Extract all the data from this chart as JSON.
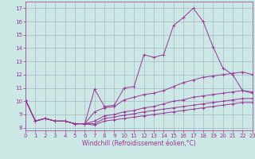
{
  "xlabel": "Windchill (Refroidissement éolien,°C)",
  "background_color": "#cce8e4",
  "grid_color": "#9999bb",
  "line_color": "#993399",
  "xlim": [
    0,
    23
  ],
  "ylim": [
    7.8,
    17.5
  ],
  "yticks": [
    8,
    9,
    10,
    11,
    12,
    13,
    14,
    15,
    16,
    17
  ],
  "xticks": [
    0,
    1,
    2,
    3,
    4,
    5,
    6,
    7,
    8,
    9,
    10,
    11,
    12,
    13,
    14,
    15,
    16,
    17,
    18,
    19,
    20,
    21,
    22,
    23
  ],
  "line1_x": [
    0,
    1,
    2,
    3,
    4,
    5,
    6,
    7,
    8,
    9,
    10,
    11,
    12,
    13,
    14,
    15,
    16,
    17,
    18,
    19,
    20,
    21,
    22,
    23
  ],
  "line1_y": [
    10.1,
    8.5,
    8.7,
    8.5,
    8.5,
    8.3,
    8.3,
    10.9,
    9.6,
    9.7,
    11.0,
    11.1,
    13.5,
    13.3,
    13.5,
    15.7,
    16.3,
    17.0,
    16.0,
    14.1,
    12.5,
    12.0,
    10.8,
    10.6
  ],
  "line2_x": [
    0,
    1,
    2,
    3,
    4,
    5,
    6,
    7,
    8,
    9,
    10,
    11,
    12,
    13,
    14,
    15,
    16,
    17,
    18,
    19,
    20,
    21,
    22,
    23
  ],
  "line2_y": [
    10.1,
    8.5,
    8.7,
    8.5,
    8.5,
    8.3,
    8.3,
    9.2,
    9.5,
    9.6,
    10.1,
    10.3,
    10.5,
    10.6,
    10.8,
    11.1,
    11.4,
    11.6,
    11.8,
    11.9,
    12.0,
    12.1,
    12.2,
    12.0
  ],
  "line3_x": [
    0,
    1,
    2,
    3,
    4,
    5,
    6,
    7,
    8,
    9,
    10,
    11,
    12,
    13,
    14,
    15,
    16,
    17,
    18,
    19,
    20,
    21,
    22,
    23
  ],
  "line3_y": [
    10.1,
    8.5,
    8.7,
    8.5,
    8.5,
    8.3,
    8.3,
    8.5,
    8.9,
    9.0,
    9.2,
    9.3,
    9.5,
    9.6,
    9.8,
    10.0,
    10.1,
    10.3,
    10.4,
    10.5,
    10.6,
    10.7,
    10.8,
    10.7
  ],
  "line4_x": [
    0,
    1,
    2,
    3,
    4,
    5,
    6,
    7,
    8,
    9,
    10,
    11,
    12,
    13,
    14,
    15,
    16,
    17,
    18,
    19,
    20,
    21,
    22,
    23
  ],
  "line4_y": [
    10.1,
    8.5,
    8.7,
    8.5,
    8.5,
    8.3,
    8.3,
    8.3,
    8.7,
    8.8,
    8.95,
    9.05,
    9.2,
    9.3,
    9.4,
    9.5,
    9.6,
    9.7,
    9.8,
    9.9,
    10.0,
    10.1,
    10.2,
    10.2
  ],
  "line5_x": [
    0,
    1,
    2,
    3,
    4,
    5,
    6,
    7,
    8,
    9,
    10,
    11,
    12,
    13,
    14,
    15,
    16,
    17,
    18,
    19,
    20,
    21,
    22,
    23
  ],
  "line5_y": [
    10.1,
    8.5,
    8.7,
    8.5,
    8.5,
    8.3,
    8.3,
    8.2,
    8.5,
    8.6,
    8.7,
    8.8,
    8.9,
    9.0,
    9.1,
    9.2,
    9.3,
    9.4,
    9.5,
    9.6,
    9.7,
    9.8,
    9.9,
    9.9
  ],
  "marker_style": "+",
  "marker_size": 2.5,
  "line_width": 0.7,
  "tick_fontsize": 5,
  "label_fontsize": 5.5
}
